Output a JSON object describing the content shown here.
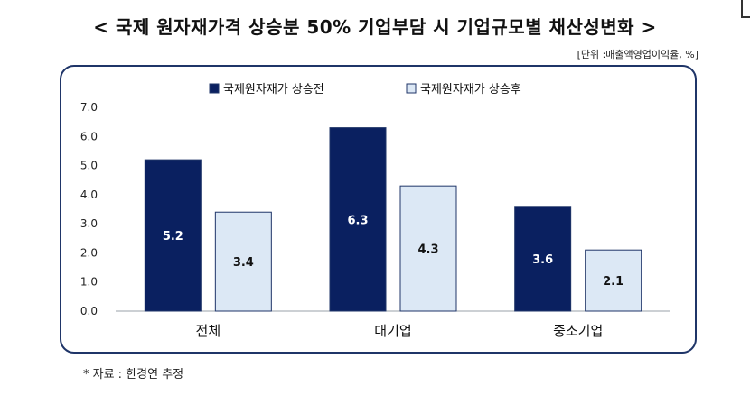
{
  "title": "< 국제 원자재가격 상승분 50% 기업부담 시 기업규모별 채산성변화 >",
  "unit_note": "[단위 :매출액영업이익율, %]",
  "source_note": "* 자료 : 한경연 추정",
  "chart_data": {
    "type": "bar",
    "title": "< 국제 원자재가격 상승분 50% 기업부담 시 기업규모별 채산성변화 >",
    "xlabel": "",
    "ylabel": "",
    "categories": [
      "전체",
      "대기업",
      "중소기업"
    ],
    "series": [
      {
        "name": "국제원자재가 상승전",
        "values": [
          5.2,
          6.3,
          3.6
        ],
        "color": "#0a2060",
        "label_color": "#ffffff"
      },
      {
        "name": "국제원자재가 상승후",
        "values": [
          3.4,
          4.3,
          2.1
        ],
        "color": "#dce8f5",
        "label_color": "#111111"
      }
    ],
    "yticks": [
      "0.0",
      "1.0",
      "2.0",
      "3.0",
      "4.0",
      "5.0",
      "6.0",
      "7.0"
    ],
    "ylim": [
      0,
      7
    ],
    "grid": false,
    "legend_position": "top"
  }
}
